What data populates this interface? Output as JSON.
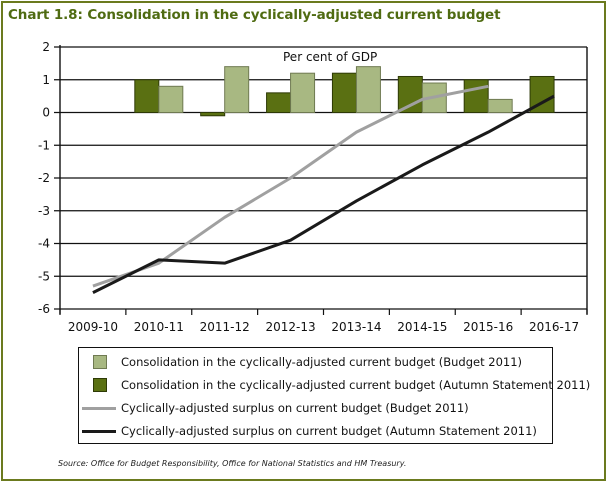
{
  "title": "Chart 1.8: Consolidation in the cyclically-adjusted current budget",
  "source": "Source: Office for Budget Responsibility, Office for National Statistics and HM Treasury.",
  "colors": {
    "frame": "#6b7a1e",
    "title": "#4f6b12",
    "bar_autumn": "#5a7012",
    "bar_autumn_edge": "#2e3a06",
    "bar_budget": "#a8b882",
    "bar_budget_edge": "#6f7a52",
    "line_budget": "#a0a0a0",
    "line_autumn": "#1a1a1a"
  },
  "chart_data": {
    "type": "bar+line",
    "title": "Chart 1.8: Consolidation in the cyclically-adjusted current budget",
    "annotation": "Per cent of GDP",
    "xlabel": "",
    "ylabel": "",
    "ylim": [
      -6,
      2
    ],
    "yticks": [
      2,
      1,
      0,
      -1,
      -2,
      -3,
      -4,
      -5,
      -6
    ],
    "ytick_labels": [
      "2",
      "1",
      "0",
      "-1",
      "-2",
      "-3",
      "-4",
      "-5",
      "-6"
    ],
    "grid": true,
    "categories": [
      "2009-10",
      "2010-11",
      "2011-12",
      "2012-13",
      "2013-14",
      "2014-15",
      "2015-16",
      "2016-17"
    ],
    "series": [
      {
        "name": "Consolidation in the cyclically-adjusted current budget (Budget 2011)",
        "kind": "bar",
        "values": [
          null,
          0.8,
          1.4,
          1.2,
          1.4,
          0.9,
          0.4,
          null
        ]
      },
      {
        "name": "Consolidation in the cyclically-adjusted current budget (Autumn Statement 2011)",
        "kind": "bar",
        "values": [
          null,
          1.0,
          -0.1,
          0.6,
          1.2,
          1.1,
          1.0,
          1.1
        ]
      },
      {
        "name": "Cyclically-adjusted surplus on current budget (Budget 2011)",
        "kind": "line",
        "values": [
          -5.3,
          -4.6,
          -3.2,
          -2.0,
          -0.6,
          0.4,
          0.8,
          null
        ]
      },
      {
        "name": "Cyclically-adjusted surplus on current budget (Autumn Statement 2011)",
        "kind": "line",
        "values": [
          -5.5,
          -4.5,
          -4.6,
          -3.9,
          -2.7,
          -1.6,
          -0.6,
          0.5
        ]
      }
    ],
    "legend_position": "bottom"
  },
  "legend": {
    "items": [
      {
        "label": "Consolidation in the cyclically-adjusted current budget (Budget 2011)"
      },
      {
        "label": "Consolidation in the cyclically-adjusted current budget (Autumn Statement 2011)"
      },
      {
        "label": "Cyclically-adjusted surplus on current budget (Budget 2011)"
      },
      {
        "label": "Cyclically-adjusted surplus on current budget (Autumn Statement 2011)"
      }
    ]
  }
}
